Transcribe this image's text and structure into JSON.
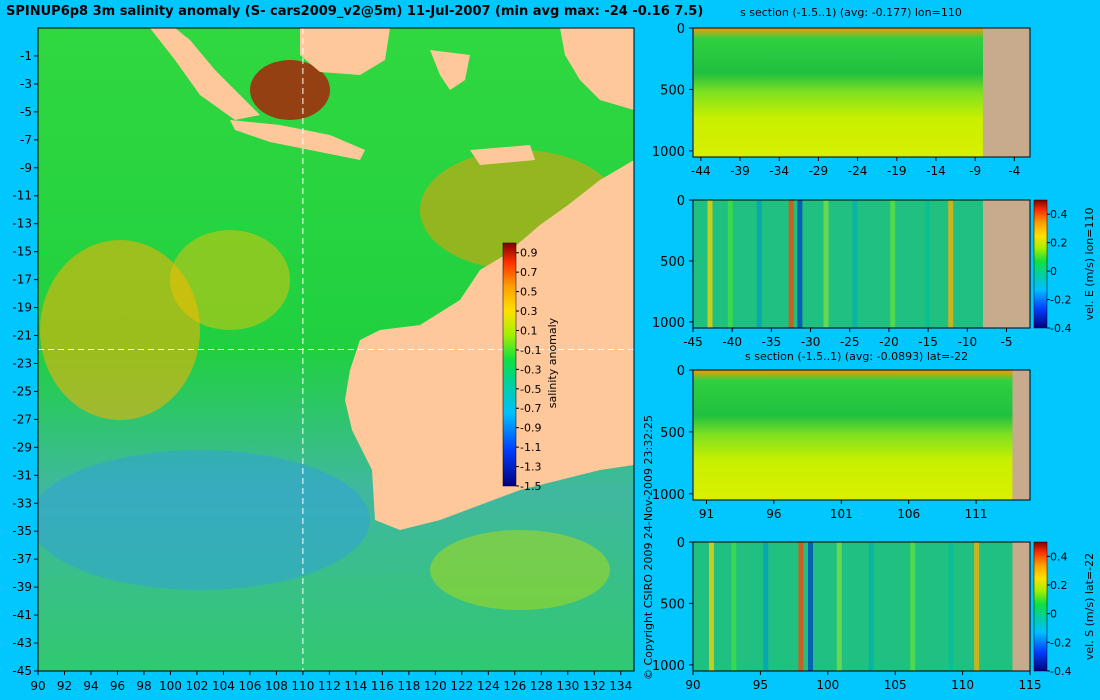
{
  "title": "SPINUP6p8 3m salinity anomaly (S- cars2009_v2@5m) 11-Jul-2007 (min avg max: -24 -0.16 7.5)",
  "copyright": "© Copyright CSIRO 2009  24-Nov-2009 23:32:25",
  "colors": {
    "background": "#00c8ff",
    "land": "#ffc89b",
    "section_land": "#c8aa8c"
  },
  "chart_data": [
    {
      "type": "heatmap",
      "name": "map",
      "title": "",
      "xlim": [
        90,
        135
      ],
      "ylim": [
        -45,
        1
      ],
      "x_ticks": [
        "90",
        "92",
        "94",
        "96",
        "98",
        "100",
        "102",
        "104",
        "106",
        "108",
        "110",
        "112",
        "114",
        "116",
        "118",
        "120",
        "122",
        "124",
        "126",
        "128",
        "130",
        "132",
        "134"
      ],
      "y_ticks": [
        "-1",
        "-3",
        "-5",
        "-7",
        "-9",
        "-11",
        "-13",
        "-15",
        "-17",
        "-19",
        "-21",
        "-23",
        "-25",
        "-27",
        "-29",
        "-31",
        "-33",
        "-35",
        "-37",
        "-39",
        "-41",
        "-43",
        "-45"
      ],
      "crosshair": {
        "lon": 110,
        "lat": -22
      },
      "colorbar": {
        "label": "salinity anomaly",
        "range": [
          -1.5,
          1.0
        ],
        "ticks": [
          "0.9",
          "0.7",
          "0.5",
          "0.3",
          "0.1",
          "-0.1",
          "-0.3",
          "-0.5",
          "-0.7",
          "-0.9",
          "-1.1",
          "-1.3",
          "-1.5"
        ]
      }
    },
    {
      "type": "heatmap",
      "name": "s-section-lon110",
      "title": "s section (-1.5..1) (avg: -0.177) lon=110",
      "xlim": [
        -45,
        -2
      ],
      "ylim": [
        1050,
        0
      ],
      "x_ticks": [
        "-44",
        "-39",
        "-34",
        "-29",
        "-24",
        "-19",
        "-14",
        "-9",
        "-4"
      ],
      "y_ticks": [
        "0",
        "500",
        "1000"
      ],
      "land_from": -8
    },
    {
      "type": "heatmap",
      "name": "vel-e-section-lon110",
      "title": "",
      "xlim": [
        -45,
        -2
      ],
      "ylim": [
        1050,
        0
      ],
      "x_ticks": [
        "-45",
        "-40",
        "-35",
        "-30",
        "-25",
        "-20",
        "-15",
        "-10",
        "-5"
      ],
      "y_ticks": [
        "0",
        "500",
        "1000"
      ],
      "land_from": -8,
      "colorbar": {
        "label": "vel. E (m/s) lon=110",
        "range": [
          -0.4,
          0.5
        ],
        "ticks": [
          "0.4",
          "0.2",
          "0",
          "-0.2",
          "-0.4"
        ]
      }
    },
    {
      "type": "heatmap",
      "name": "s-section-lat-22",
      "title": "s section (-1.5..1) (avg: -0.0893) lat=-22",
      "xlim": [
        90,
        115
      ],
      "ylim": [
        1050,
        0
      ],
      "x_ticks": [
        "91",
        "96",
        "101",
        "106",
        "111"
      ],
      "y_ticks": [
        "0",
        "500",
        "1000"
      ],
      "land_from": 113.7
    },
    {
      "type": "heatmap",
      "name": "vel-s-section-lat-22",
      "title": "",
      "xlim": [
        90,
        115
      ],
      "ylim": [
        1050,
        0
      ],
      "x_ticks": [
        "90",
        "95",
        "100",
        "105",
        "110",
        "115"
      ],
      "y_ticks": [
        "0",
        "500",
        "1000"
      ],
      "land_from": 113.7,
      "colorbar": {
        "label": "vel. S (m/s) lat=-22",
        "range": [
          -0.4,
          0.5
        ],
        "ticks": [
          "0.4",
          "0.2",
          "0",
          "-0.2",
          "-0.4"
        ]
      }
    }
  ]
}
